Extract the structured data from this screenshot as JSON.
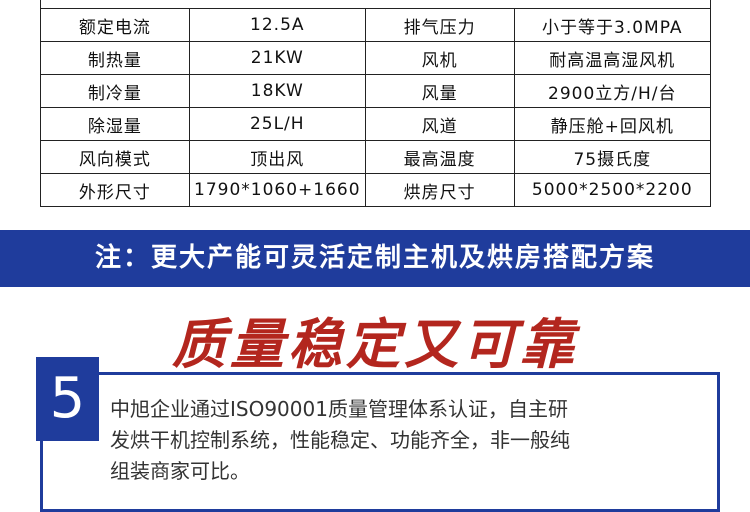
{
  "table": {
    "rows": [
      [
        "额定电流",
        "12.5A",
        "排气压力",
        "小于等于3.0MPA"
      ],
      [
        "制热量",
        "21KW",
        "风机",
        "耐高温高湿风机"
      ],
      [
        "制冷量",
        "18KW",
        "风量",
        "2900立方/H/台"
      ],
      [
        "除湿量",
        "25L/H",
        "风道",
        "静压舱+回风机"
      ],
      [
        "风向模式",
        "顶出风",
        "最高温度",
        "75摄氏度"
      ],
      [
        "外形尺寸",
        "1790*1060+1660",
        "烘房尺寸",
        "5000*2500*2200"
      ]
    ]
  },
  "banner": {
    "text": "注：更大产能可灵活定制主机及烘房搭配方案"
  },
  "section": {
    "title": "质量稳定又可靠",
    "number": "5",
    "lines": [
      "中旭企业通过ISO90001质量管理体系认证，自主研",
      "发烘干机控制系统，性能稳定、功能齐全，非一般纯",
      "组装商家可比。"
    ]
  }
}
